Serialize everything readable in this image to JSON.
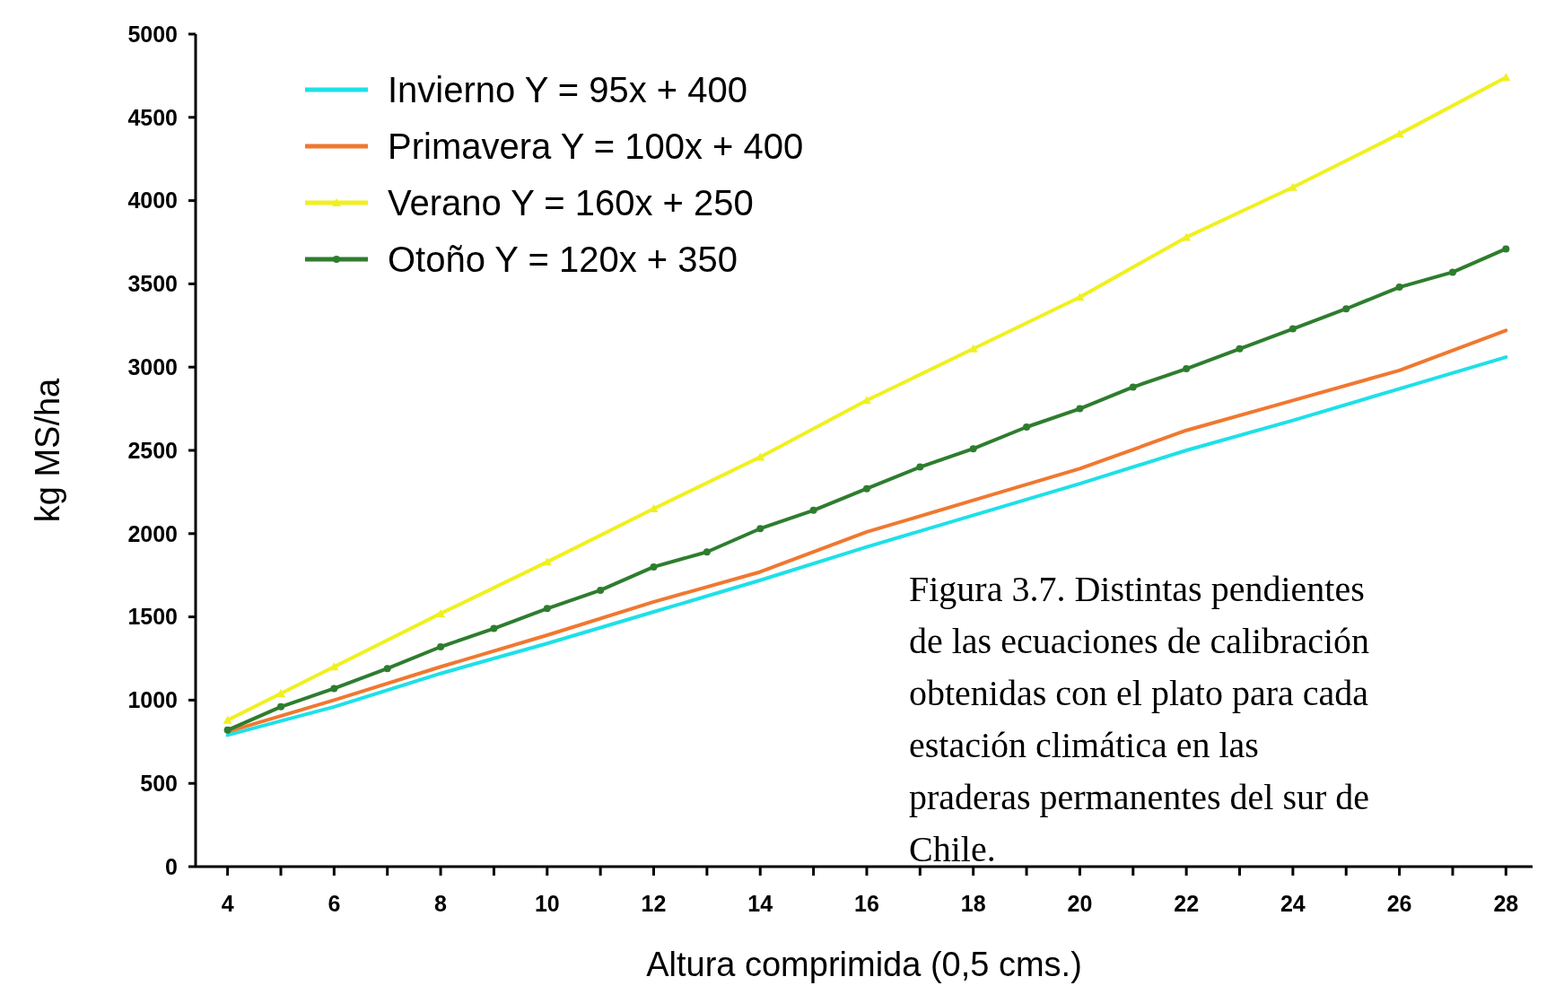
{
  "chart_data": {
    "type": "line",
    "xlabel": "Altura comprimida (0,5 cms.)",
    "ylabel": "kg MS/ha",
    "xlim": [
      3.4,
      28.5
    ],
    "ylim": [
      0,
      5000
    ],
    "xticks": [
      4,
      {
        "value": 5,
        "label": null
      },
      6,
      {
        "value": 7,
        "label": null
      },
      8,
      {
        "value": 9,
        "label": null
      },
      10,
      {
        "value": 11,
        "label": null
      },
      12,
      {
        "value": 13,
        "label": null
      },
      14,
      {
        "value": 15,
        "label": null
      },
      16,
      {
        "value": 17,
        "label": null
      },
      18,
      {
        "value": 19,
        "label": null
      },
      20,
      {
        "value": 21,
        "label": null
      },
      22,
      {
        "value": 23,
        "label": null
      },
      24,
      {
        "value": 25,
        "label": null
      },
      26,
      {
        "value": 27,
        "label": null
      },
      28
    ],
    "yticks": [
      0,
      500,
      1000,
      1500,
      2000,
      2500,
      3000,
      3500,
      4000,
      4500,
      5000
    ],
    "grid": false,
    "legend": "top left",
    "annotations": [
      "Figura 3.7. Distintas pendientes de las ecuaciones de calibración obtenidas con el plato para cada estación climática en las praderas permanentes del sur de Chile."
    ],
    "series": [
      {
        "name": "Invierno Y = 95x + 400",
        "color": "#1ee0e8",
        "marker": "none",
        "x": [
          4,
          6,
          8,
          10,
          12,
          14,
          16,
          18,
          20,
          22,
          24,
          26,
          28
        ],
        "values": [
          790,
          960,
          1160,
          1340,
          1530,
          1720,
          1920,
          2110,
          2300,
          2500,
          2680,
          2870,
          3060
        ]
      },
      {
        "name": "Primavera Y = 100x + 400",
        "color": "#f07830",
        "marker": "none",
        "x": [
          4,
          6,
          8,
          10,
          12,
          14,
          16,
          18,
          20,
          22,
          24,
          26,
          28
        ],
        "values": [
          810,
          1000,
          1200,
          1390,
          1590,
          1770,
          2010,
          2200,
          2390,
          2620,
          2800,
          2980,
          3220
        ]
      },
      {
        "name": "Verano Y = 160x + 250",
        "color": "#f0f020",
        "marker": "triangle",
        "x": [
          4,
          5,
          6,
          8,
          10,
          12,
          14,
          16,
          18,
          20,
          22,
          24,
          26,
          28
        ],
        "values": [
          880,
          1040,
          1200,
          1520,
          1830,
          2150,
          2460,
          2800,
          3110,
          3420,
          3780,
          4080,
          4400,
          4740
        ]
      },
      {
        "name": "Otoño Y = 120x + 350",
        "color": "#2e7d2e",
        "marker": "circle",
        "x": [
          4,
          5,
          6,
          7,
          8,
          9,
          10,
          11,
          12,
          13,
          14,
          15,
          16,
          17,
          18,
          19,
          20,
          21,
          22,
          23,
          24,
          25,
          26,
          27,
          28
        ],
        "values": [
          820,
          960,
          1070,
          1190,
          1320,
          1430,
          1550,
          1660,
          1800,
          1890,
          2030,
          2140,
          2270,
          2400,
          2510,
          2640,
          2750,
          2880,
          2990,
          3110,
          3230,
          3350,
          3480,
          3570,
          3710
        ]
      }
    ]
  }
}
